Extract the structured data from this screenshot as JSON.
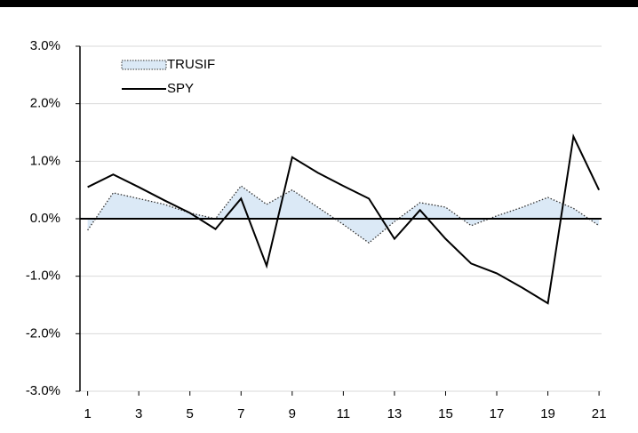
{
  "chart_data": {
    "type": "line",
    "x": [
      1,
      2,
      3,
      4,
      5,
      6,
      7,
      8,
      9,
      10,
      11,
      12,
      13,
      14,
      15,
      16,
      17,
      18,
      19,
      20,
      21
    ],
    "series": [
      {
        "name": "TRUSIF",
        "color": "#dbe9f6",
        "style": "area",
        "values": [
          -0.2,
          0.45,
          0.35,
          0.25,
          0.1,
          0.0,
          0.57,
          0.25,
          0.5,
          0.2,
          -0.1,
          -0.42,
          -0.05,
          0.28,
          0.2,
          -0.12,
          0.05,
          0.2,
          0.37,
          0.18,
          -0.12
        ]
      },
      {
        "name": "SPY",
        "color": "#000000",
        "style": "line",
        "values": [
          0.55,
          0.77,
          0.55,
          0.32,
          0.1,
          -0.18,
          0.35,
          -0.82,
          1.07,
          0.8,
          0.57,
          0.35,
          -0.35,
          0.15,
          -0.35,
          -0.78,
          -0.95,
          -1.2,
          -1.47,
          1.43,
          0.5
        ]
      }
    ],
    "xlim": [
      0.7,
      21.1
    ],
    "xticks": [
      1,
      3,
      5,
      7,
      9,
      11,
      13,
      15,
      17,
      19,
      21
    ],
    "ylim": [
      -3,
      3
    ],
    "yticks": [
      {
        "value": -3,
        "label": "-3.0%"
      },
      {
        "value": -2,
        "label": "-2.0%"
      },
      {
        "value": -1,
        "label": "-1.0%"
      },
      {
        "value": 0,
        "label": "0.0%"
      },
      {
        "value": 1,
        "label": "1.0%"
      },
      {
        "value": 2,
        "label": "2.0%"
      },
      {
        "value": 3,
        "label": "3.0%"
      }
    ],
    "grid": true,
    "legend": "top-left"
  }
}
